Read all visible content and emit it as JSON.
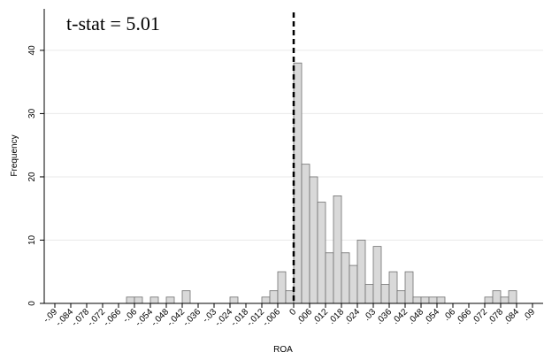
{
  "chart_data": {
    "type": "histogram",
    "annotation": "t-stat = 5.01",
    "xlabel": "ROA",
    "ylabel": "Frequency",
    "bins": [
      -0.063,
      -0.06,
      -0.057,
      -0.054,
      -0.051,
      -0.048,
      -0.045,
      -0.042,
      -0.039,
      -0.036,
      -0.033,
      -0.03,
      -0.027,
      -0.024,
      -0.021,
      -0.018,
      -0.015,
      -0.012,
      -0.009,
      -0.006,
      -0.003,
      0,
      0.003,
      0.006,
      0.009,
      0.012,
      0.015,
      0.018,
      0.021,
      0.024,
      0.027,
      0.03,
      0.033,
      0.036,
      0.039,
      0.042,
      0.045,
      0.048,
      0.051,
      0.054,
      0.057,
      0.06,
      0.063,
      0.066,
      0.069,
      0.072,
      0.075,
      0.078,
      0.081,
      0.084
    ],
    "values": [
      1,
      1,
      0,
      1,
      0,
      1,
      0,
      2,
      0,
      0,
      0,
      0,
      0,
      1,
      0,
      0,
      0,
      1,
      2,
      5,
      2,
      38,
      22,
      20,
      16,
      8,
      17,
      8,
      6,
      10,
      3,
      9,
      3,
      5,
      2,
      5,
      1,
      1,
      1,
      1,
      0,
      0,
      0,
      0,
      0,
      1,
      2,
      1,
      2
    ],
    "color": "#d9d9d9",
    "vline": 0,
    "xlim": [
      -0.094,
      0.094
    ],
    "ylim": [
      0,
      46
    ],
    "xticks": [
      {
        "value": -0.09,
        "label": "-.09"
      },
      {
        "value": -0.084,
        "label": "-.084"
      },
      {
        "value": -0.078,
        "label": "-.078"
      },
      {
        "value": -0.072,
        "label": "-.072"
      },
      {
        "value": -0.066,
        "label": "-.066"
      },
      {
        "value": -0.06,
        "label": "-.06"
      },
      {
        "value": -0.054,
        "label": "-.054"
      },
      {
        "value": -0.048,
        "label": "-.048"
      },
      {
        "value": -0.042,
        "label": "-.042"
      },
      {
        "value": -0.036,
        "label": "-.036"
      },
      {
        "value": -0.03,
        "label": "-.03"
      },
      {
        "value": -0.024,
        "label": "-.024"
      },
      {
        "value": -0.018,
        "label": "-.018"
      },
      {
        "value": -0.012,
        "label": "-.012"
      },
      {
        "value": -0.006,
        "label": "-.006"
      },
      0,
      {
        "value": 0.006,
        "label": ".006"
      },
      {
        "value": 0.012,
        "label": ".012"
      },
      {
        "value": 0.018,
        "label": ".018"
      },
      {
        "value": 0.024,
        "label": ".024"
      },
      {
        "value": 0.03,
        "label": ".03"
      },
      {
        "value": 0.036,
        "label": ".036"
      },
      {
        "value": 0.042,
        "label": ".042"
      },
      {
        "value": 0.048,
        "label": ".048"
      },
      {
        "value": 0.054,
        "label": ".054"
      },
      {
        "value": 0.06,
        "label": ".06"
      },
      {
        "value": 0.066,
        "label": ".066"
      },
      {
        "value": 0.072,
        "label": ".072"
      },
      {
        "value": 0.078,
        "label": ".078"
      },
      {
        "value": 0.084,
        "label": ".084"
      },
      {
        "value": 0.09,
        "label": ".09"
      }
    ],
    "yticks": [
      0,
      10,
      20,
      30,
      40
    ],
    "grid": true
  }
}
